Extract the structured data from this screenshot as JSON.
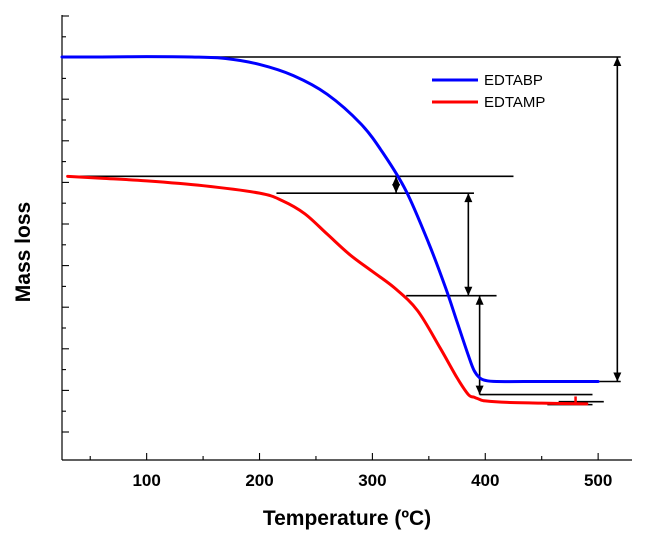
{
  "chart_data": {
    "type": "line",
    "xlabel": "Temperature (ºC)",
    "ylabel": "Mass loss",
    "xlim": [
      25,
      530
    ],
    "ylim": [
      0,
      100
    ],
    "xticks": [
      100,
      200,
      300,
      400,
      500
    ],
    "y_tick_labels_shown": false,
    "grid": false,
    "legend_position": "top-right",
    "series": [
      {
        "name": "EDTABP",
        "color": "#0000ff",
        "x": [
          25,
          60,
          100,
          140,
          170,
          200,
          230,
          260,
          290,
          310,
          330,
          350,
          365,
          375,
          385,
          390,
          395,
          400,
          410,
          450,
          500
        ],
        "y": [
          100,
          100,
          100.1,
          100,
          99.6,
          98,
          95,
          90,
          82,
          74,
          64,
          50,
          38,
          29,
          20,
          16,
          14,
          13.3,
          13,
          13,
          13
        ]
      },
      {
        "name": "EDTAMP",
        "color": "#ff0000",
        "x": [
          30,
          60,
          100,
          150,
          200,
          220,
          240,
          260,
          280,
          300,
          320,
          340,
          360,
          375,
          385,
          390,
          395,
          400,
          420,
          450,
          490
        ],
        "y": [
          68,
          67.5,
          66.8,
          65.5,
          63.5,
          61.5,
          58,
          52.5,
          47,
          42.5,
          38,
          32,
          22,
          14,
          9.5,
          8.8,
          8.2,
          7.8,
          7.4,
          7.2,
          7.0
        ]
      }
    ],
    "annotations": {
      "color": "#000000",
      "hlines": [
        {
          "x1": 25,
          "x2": 520,
          "y": 100
        },
        {
          "x1": 480,
          "x2": 520,
          "y": 13
        },
        {
          "x1": 35,
          "x2": 425,
          "y": 68
        },
        {
          "x1": 215,
          "x2": 390,
          "y": 63.5
        },
        {
          "x1": 330,
          "x2": 410,
          "y": 36
        },
        {
          "x1": 395,
          "x2": 495,
          "y": 9.5
        },
        {
          "x1": 465,
          "x2": 505,
          "y": 7.6
        },
        {
          "x1": 455,
          "x2": 495,
          "y": 6.8
        }
      ],
      "arrows": [
        {
          "x": 517,
          "y1": 100,
          "y2": 13
        },
        {
          "x": 321,
          "y1": 68,
          "y2": 63.5
        },
        {
          "x": 385,
          "y1": 63.5,
          "y2": 36
        },
        {
          "x": 395,
          "y1": 36,
          "y2": 9.5
        }
      ],
      "red_marker": {
        "x": 480,
        "y1": 9,
        "y2": 7
      }
    }
  }
}
